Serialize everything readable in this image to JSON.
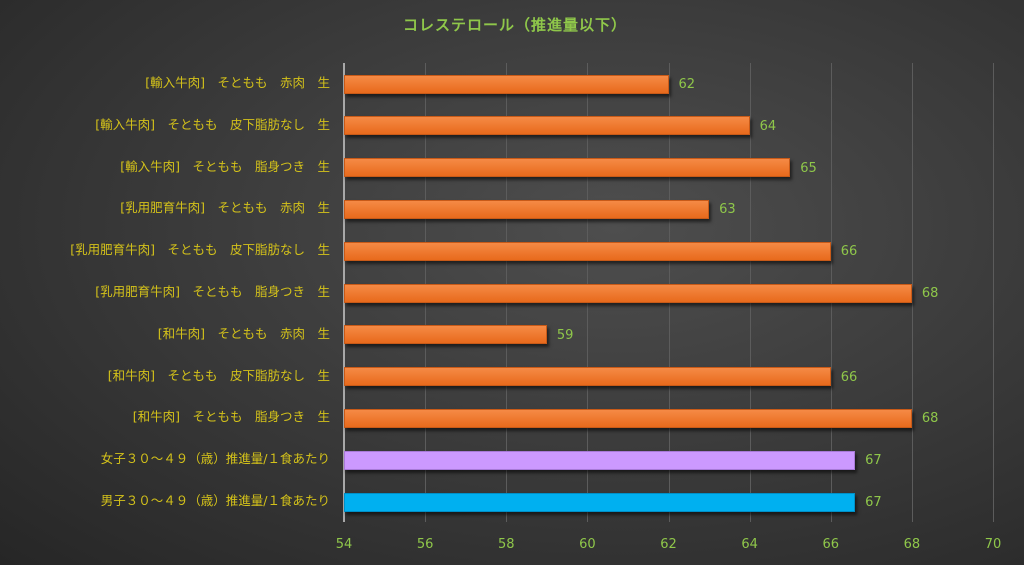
{
  "chart_data": {
    "type": "bar",
    "orientation": "horizontal",
    "title": "コレステロール（推進量以下）",
    "xlabel": "",
    "ylabel": "",
    "xlim": [
      54,
      70
    ],
    "x_ticks": [
      "54",
      "56",
      "58",
      "60",
      "62",
      "64",
      "66",
      "68",
      "70"
    ],
    "grid": true,
    "categories": [
      "[輸入牛肉]　そともも　赤肉　生",
      "[輸入牛肉]　そともも　皮下脂肪なし　生",
      "[輸入牛肉]　そともも　脂身つき　生",
      "[乳用肥育牛肉]　そともも　赤肉　生",
      "[乳用肥育牛肉]　そともも　皮下脂肪なし　生",
      "[乳用肥育牛肉]　そともも　脂身つき　生",
      "[和牛肉]　そともも　赤肉　生",
      "[和牛肉]　そともも　皮下脂肪なし　生",
      "[和牛肉]　そともも　脂身つき　生",
      "女子３０～４９（歳）推進量/１食あたり",
      "男子３０～４９（歳）推進量/１食あたり"
    ],
    "values": [
      62,
      64,
      65,
      63,
      66,
      68,
      59,
      66,
      68,
      66.6,
      66.6
    ],
    "data_labels": [
      "62",
      "64",
      "65",
      "63",
      "66",
      "68",
      "59",
      "66",
      "68",
      "67",
      "67"
    ],
    "colors": [
      "#ed7125",
      "#ed7125",
      "#ed7125",
      "#ed7125",
      "#ed7125",
      "#ed7125",
      "#ed7125",
      "#ed7125",
      "#ed7125",
      "#cc99ff",
      "#00b0f0"
    ]
  }
}
